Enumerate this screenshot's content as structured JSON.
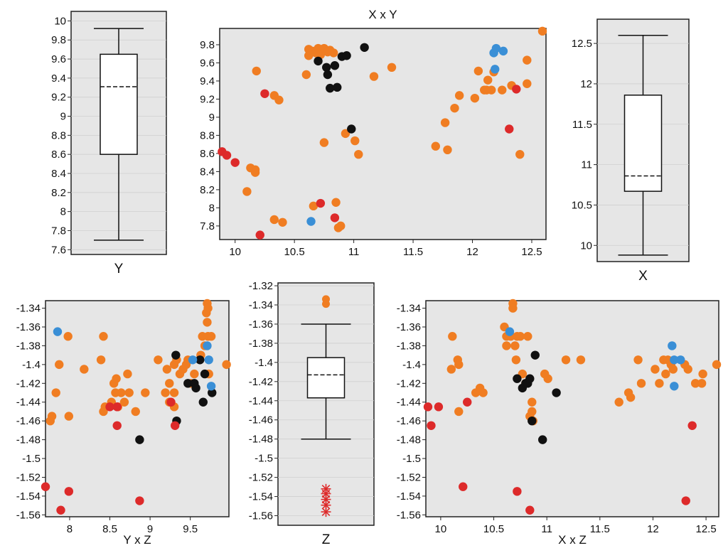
{
  "colors": {
    "panel_bg": "#e6e6e6",
    "orange": "#f07d22",
    "black": "#111111",
    "red": "#dd2a2a",
    "blue": "#3a8fd6",
    "grid": "#cfcfcf"
  },
  "chart_data": [
    {
      "id": "y_box",
      "type": "boxplot",
      "title": "",
      "xlabel": "Y",
      "ylabel": "",
      "ylim": [
        7.55,
        10.1
      ],
      "yticks": [
        "7.6",
        "7.8",
        "8",
        "8.2",
        "8.4",
        "8.6",
        "8.8",
        "9",
        "9.2",
        "9.4",
        "9.6",
        "9.8",
        "10"
      ],
      "box": {
        "whisker_low": 7.7,
        "q1": 8.6,
        "median": 9.31,
        "q3": 9.65,
        "whisker_high": 9.92
      },
      "outliers": []
    },
    {
      "id": "xy_scatter",
      "type": "scatter",
      "title": "X x Y",
      "xlabel": "",
      "ylabel": "",
      "xlim": [
        9.87,
        12.62
      ],
      "ylim": [
        7.65,
        9.98
      ],
      "xticks": [
        "10",
        "10.5",
        "11",
        "11.5",
        "12",
        "12.5"
      ],
      "yticks": [
        "7.8",
        "8",
        "8.2",
        "8.4",
        "8.6",
        "8.8",
        "9",
        "9.2",
        "9.4",
        "9.6",
        "9.8"
      ],
      "series": [
        {
          "color": "orange",
          "points": [
            [
              10.18,
              9.51
            ],
            [
              10.33,
              9.24
            ],
            [
              10.37,
              9.19
            ],
            [
              10.13,
              8.44
            ],
            [
              10.17,
              8.42
            ],
            [
              10.17,
              8.39
            ],
            [
              10.1,
              8.18
            ],
            [
              10.33,
              7.87
            ],
            [
              10.4,
              7.84
            ],
            [
              10.66,
              8.02
            ],
            [
              10.75,
              8.72
            ],
            [
              10.85,
              8.06
            ],
            [
              10.87,
              7.78
            ],
            [
              10.89,
              7.8
            ],
            [
              10.6,
              9.47
            ],
            [
              10.62,
              9.68
            ],
            [
              10.62,
              9.75
            ],
            [
              10.65,
              9.73
            ],
            [
              10.68,
              9.71
            ],
            [
              10.7,
              9.76
            ],
            [
              10.72,
              9.69
            ],
            [
              10.75,
              9.76
            ],
            [
              10.78,
              9.72
            ],
            [
              10.8,
              9.74
            ],
            [
              10.83,
              9.71
            ],
            [
              10.93,
              8.82
            ],
            [
              11.01,
              8.74
            ],
            [
              11.04,
              8.59
            ],
            [
              11.17,
              9.45
            ],
            [
              11.32,
              9.55
            ],
            [
              11.69,
              8.68
            ],
            [
              11.77,
              8.94
            ],
            [
              11.79,
              8.64
            ],
            [
              11.85,
              9.1
            ],
            [
              11.89,
              9.24
            ],
            [
              12.02,
              9.21
            ],
            [
              12.05,
              9.51
            ],
            [
              12.1,
              9.3
            ],
            [
              12.12,
              9.3
            ],
            [
              12.13,
              9.41
            ],
            [
              12.16,
              9.3
            ],
            [
              12.18,
              9.5
            ],
            [
              12.25,
              9.3
            ],
            [
              12.33,
              9.35
            ],
            [
              12.4,
              8.59
            ],
            [
              12.46,
              9.37
            ],
            [
              12.46,
              9.63
            ],
            [
              12.59,
              9.95
            ]
          ]
        },
        {
          "color": "black",
          "points": [
            [
              10.7,
              9.62
            ],
            [
              10.77,
              9.55
            ],
            [
              10.78,
              9.47
            ],
            [
              10.8,
              9.32
            ],
            [
              10.84,
              9.57
            ],
            [
              10.86,
              9.33
            ],
            [
              10.9,
              9.67
            ],
            [
              10.94,
              9.68
            ],
            [
              10.98,
              8.87
            ],
            [
              11.09,
              9.77
            ]
          ]
        },
        {
          "color": "red",
          "points": [
            [
              9.89,
              8.62
            ],
            [
              9.93,
              8.58
            ],
            [
              10.0,
              8.5
            ],
            [
              10.21,
              7.7
            ],
            [
              10.25,
              9.26
            ],
            [
              10.72,
              8.05
            ],
            [
              10.84,
              7.89
            ],
            [
              12.31,
              8.87
            ],
            [
              12.37,
              9.31
            ]
          ]
        },
        {
          "color": "blue",
          "points": [
            [
              10.64,
              7.85
            ],
            [
              12.18,
              9.71
            ],
            [
              12.19,
              9.53
            ],
            [
              12.2,
              9.76
            ],
            [
              12.26,
              9.73
            ]
          ]
        }
      ]
    },
    {
      "id": "x_box",
      "type": "boxplot",
      "title": "",
      "xlabel": "X",
      "ylabel": "",
      "ylim": [
        9.8,
        12.8
      ],
      "yticks": [
        "10",
        "10.5",
        "11",
        "11.5",
        "12",
        "12.5"
      ],
      "box": {
        "whisker_low": 9.88,
        "q1": 10.67,
        "median": 10.86,
        "q3": 11.86,
        "whisker_high": 12.6
      },
      "outliers": []
    },
    {
      "id": "yz_scatter",
      "type": "scatter",
      "title": "",
      "xlabel": "Y x Z",
      "ylabel": "",
      "xlim": [
        7.7,
        9.98
      ],
      "ylim": [
        -1.562,
        -1.332
      ],
      "xticks": [
        "8",
        "8.5",
        "9",
        "9.5"
      ],
      "yticks": [
        "-1.34",
        "-1.36",
        "-1.38",
        "-1.4",
        "-1.42",
        "-1.44",
        "-1.46",
        "-1.48",
        "-1.5",
        "-1.52",
        "-1.54",
        "-1.56"
      ],
      "series": [
        {
          "color": "orange",
          "points": [
            [
              7.76,
              -1.46
            ],
            [
              7.78,
              -1.455
            ],
            [
              7.83,
              -1.43
            ],
            [
              7.87,
              -1.4
            ],
            [
              7.99,
              -1.455
            ],
            [
              7.98,
              -1.37
            ],
            [
              8.18,
              -1.405
            ],
            [
              8.39,
              -1.395
            ],
            [
              8.42,
              -1.37
            ],
            [
              8.42,
              -1.45
            ],
            [
              8.44,
              -1.445
            ],
            [
              8.52,
              -1.44
            ],
            [
              8.55,
              -1.42
            ],
            [
              8.57,
              -1.43
            ],
            [
              8.58,
              -1.415
            ],
            [
              8.6,
              -1.445
            ],
            [
              8.64,
              -1.43
            ],
            [
              8.68,
              -1.44
            ],
            [
              8.72,
              -1.41
            ],
            [
              8.74,
              -1.43
            ],
            [
              8.82,
              -1.45
            ],
            [
              8.94,
              -1.43
            ],
            [
              9.1,
              -1.395
            ],
            [
              9.19,
              -1.43
            ],
            [
              9.21,
              -1.405
            ],
            [
              9.24,
              -1.42
            ],
            [
              9.24,
              -1.44
            ],
            [
              9.3,
              -1.4
            ],
            [
              9.3,
              -1.43
            ],
            [
              9.3,
              -1.445
            ],
            [
              9.33,
              -1.395
            ],
            [
              9.37,
              -1.41
            ],
            [
              9.41,
              -1.405
            ],
            [
              9.45,
              -1.4
            ],
            [
              9.47,
              -1.395
            ],
            [
              9.51,
              -1.42
            ],
            [
              9.55,
              -1.41
            ],
            [
              9.63,
              -1.39
            ],
            [
              9.65,
              -1.37
            ],
            [
              9.68,
              -1.38
            ],
            [
              9.7,
              -1.345
            ],
            [
              9.71,
              -1.355
            ],
            [
              9.71,
              -1.335
            ],
            [
              9.72,
              -1.34
            ],
            [
              9.72,
              -1.37
            ],
            [
              9.73,
              -1.41
            ],
            [
              9.76,
              -1.37
            ],
            [
              9.95,
              -1.4
            ]
          ]
        },
        {
          "color": "black",
          "points": [
            [
              8.87,
              -1.48
            ],
            [
              9.32,
              -1.39
            ],
            [
              9.33,
              -1.46
            ],
            [
              9.47,
              -1.42
            ],
            [
              9.55,
              -1.42
            ],
            [
              9.57,
              -1.425
            ],
            [
              9.62,
              -1.395
            ],
            [
              9.66,
              -1.44
            ],
            [
              9.68,
              -1.41
            ],
            [
              9.77,
              -1.43
            ]
          ]
        },
        {
          "color": "red",
          "points": [
            [
              7.7,
              -1.53
            ],
            [
              7.89,
              -1.555
            ],
            [
              7.99,
              -1.535
            ],
            [
              8.5,
              -1.445
            ],
            [
              8.59,
              -1.445
            ],
            [
              8.59,
              -1.465
            ],
            [
              8.87,
              -1.545
            ],
            [
              9.26,
              -1.44
            ],
            [
              9.31,
              -1.465
            ]
          ]
        },
        {
          "color": "blue",
          "points": [
            [
              7.85,
              -1.365
            ],
            [
              9.53,
              -1.395
            ],
            [
              9.71,
              -1.38
            ],
            [
              9.73,
              -1.395
            ],
            [
              9.76,
              -1.423
            ]
          ]
        }
      ]
    },
    {
      "id": "z_box",
      "type": "boxplot",
      "title": "",
      "xlabel": "Z",
      "ylabel": "",
      "ylim": [
        -1.57,
        -1.317
      ],
      "yticks": [
        "-1.32",
        "-1.34",
        "-1.36",
        "-1.38",
        "-1.4",
        "-1.42",
        "-1.44",
        "-1.46",
        "-1.48",
        "-1.5",
        "-1.52",
        "-1.54",
        "-1.56"
      ],
      "box": {
        "whisker_low": -1.48,
        "q1": -1.437,
        "median": -1.413,
        "q3": -1.395,
        "whisker_high": -1.36
      },
      "outliers_high": [
        -1.334,
        -1.339
      ],
      "outliers_low": [
        -1.532,
        -1.537,
        -1.543,
        -1.549,
        -1.556
      ]
    },
    {
      "id": "xz_scatter",
      "type": "scatter",
      "title": "",
      "xlabel": "X x Z",
      "ylabel": "",
      "xlim": [
        9.86,
        12.62
      ],
      "ylim": [
        -1.562,
        -1.332
      ],
      "xticks": [
        "10",
        "10.5",
        "11",
        "11.5",
        "12",
        "12.5"
      ],
      "yticks": [
        "-1.34",
        "-1.36",
        "-1.38",
        "-1.4",
        "-1.42",
        "-1.44",
        "-1.46",
        "-1.48",
        "-1.5",
        "-1.52",
        "-1.54",
        "-1.56"
      ],
      "series": [
        {
          "color": "orange",
          "points": [
            [
              10.1,
              -1.405
            ],
            [
              10.11,
              -1.37
            ],
            [
              10.16,
              -1.395
            ],
            [
              10.17,
              -1.4
            ],
            [
              10.17,
              -1.45
            ],
            [
              10.33,
              -1.43
            ],
            [
              10.37,
              -1.425
            ],
            [
              10.4,
              -1.43
            ],
            [
              10.6,
              -1.36
            ],
            [
              10.62,
              -1.38
            ],
            [
              10.62,
              -1.37
            ],
            [
              10.66,
              -1.37
            ],
            [
              10.68,
              -1.335
            ],
            [
              10.68,
              -1.34
            ],
            [
              10.7,
              -1.38
            ],
            [
              10.71,
              -1.395
            ],
            [
              10.72,
              -1.37
            ],
            [
              10.75,
              -1.37
            ],
            [
              10.77,
              -1.41
            ],
            [
              10.8,
              -1.42
            ],
            [
              10.82,
              -1.37
            ],
            [
              10.84,
              -1.455
            ],
            [
              10.86,
              -1.45
            ],
            [
              10.86,
              -1.44
            ],
            [
              10.87,
              -1.46
            ],
            [
              10.98,
              -1.41
            ],
            [
              11.01,
              -1.415
            ],
            [
              11.18,
              -1.395
            ],
            [
              11.32,
              -1.395
            ],
            [
              11.68,
              -1.44
            ],
            [
              11.77,
              -1.43
            ],
            [
              11.79,
              -1.435
            ],
            [
              11.86,
              -1.395
            ],
            [
              11.89,
              -1.42
            ],
            [
              12.02,
              -1.405
            ],
            [
              12.06,
              -1.42
            ],
            [
              12.1,
              -1.395
            ],
            [
              12.12,
              -1.41
            ],
            [
              12.14,
              -1.395
            ],
            [
              12.17,
              -1.4
            ],
            [
              12.19,
              -1.405
            ],
            [
              12.3,
              -1.4
            ],
            [
              12.33,
              -1.405
            ],
            [
              12.4,
              -1.42
            ],
            [
              12.46,
              -1.42
            ],
            [
              12.47,
              -1.41
            ],
            [
              12.6,
              -1.4
            ]
          ]
        },
        {
          "color": "black",
          "points": [
            [
              10.72,
              -1.415
            ],
            [
              10.77,
              -1.425
            ],
            [
              10.8,
              -1.42
            ],
            [
              10.82,
              -1.42
            ],
            [
              10.84,
              -1.415
            ],
            [
              10.86,
              -1.46
            ],
            [
              10.89,
              -1.39
            ],
            [
              10.96,
              -1.48
            ],
            [
              11.09,
              -1.43
            ]
          ]
        },
        {
          "color": "red",
          "points": [
            [
              9.88,
              -1.445
            ],
            [
              9.91,
              -1.465
            ],
            [
              9.98,
              -1.445
            ],
            [
              10.21,
              -1.53
            ],
            [
              10.25,
              -1.44
            ],
            [
              10.72,
              -1.535
            ],
            [
              10.84,
              -1.555
            ],
            [
              12.31,
              -1.545
            ],
            [
              12.37,
              -1.465
            ]
          ]
        },
        {
          "color": "blue",
          "points": [
            [
              10.65,
              -1.365
            ],
            [
              12.18,
              -1.38
            ],
            [
              12.2,
              -1.395
            ],
            [
              12.2,
              -1.423
            ],
            [
              12.26,
              -1.395
            ]
          ]
        }
      ]
    }
  ]
}
